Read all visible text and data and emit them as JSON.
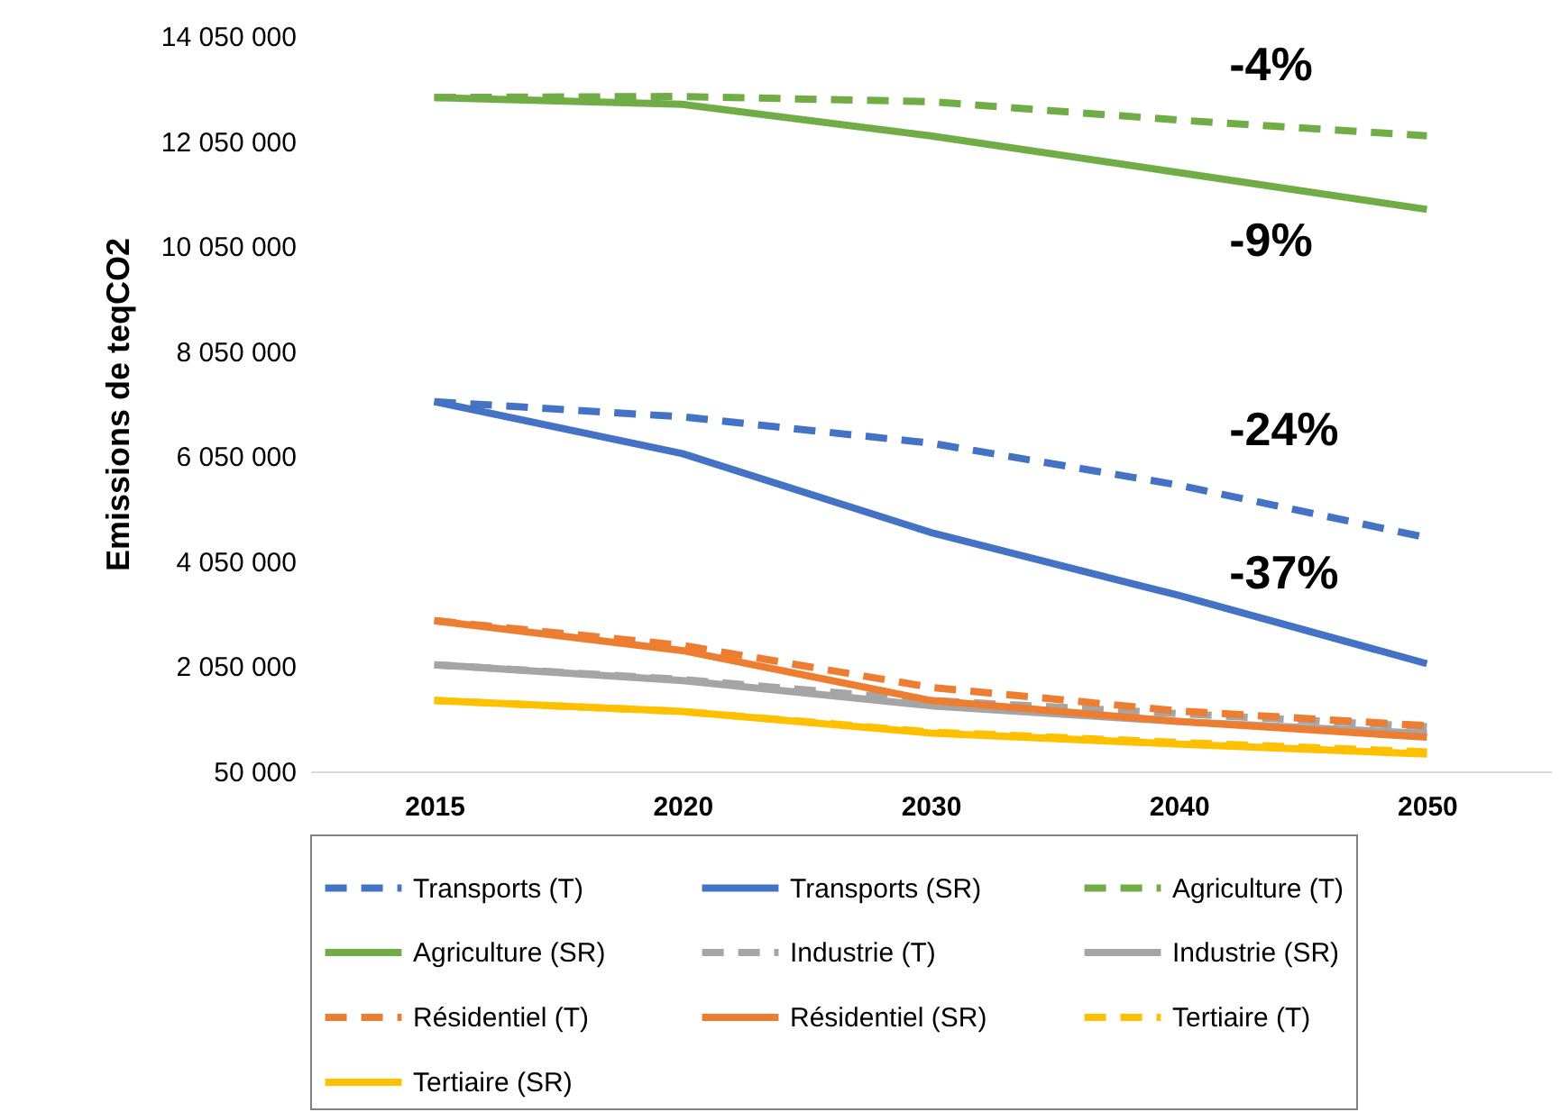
{
  "chart_data": {
    "type": "line",
    "ylabel": "Emissions de teqCO2",
    "categories": [
      "2015",
      "2020",
      "2030",
      "2040",
      "2050"
    ],
    "series": [
      {
        "name": "Transports (T)",
        "color": "#4472c4",
        "line_style": "dashed",
        "values": [
          7090000,
          6800000,
          6300000,
          5500000,
          4500000
        ]
      },
      {
        "name": "Transports (SR)",
        "color": "#4472c4",
        "line_style": "solid",
        "values": [
          7090000,
          6100000,
          4600000,
          3400000,
          2100000
        ]
      },
      {
        "name": "Agriculture (T)",
        "color": "#70ad47",
        "line_style": "dashed",
        "values": [
          12880000,
          12900000,
          12800000,
          12450000,
          12150000
        ]
      },
      {
        "name": "Agriculture (SR)",
        "color": "#70ad47",
        "line_style": "solid",
        "values": [
          12880000,
          12750000,
          12150000,
          11450000,
          10750000
        ]
      },
      {
        "name": "Industrie (T)",
        "color": "#a5a5a5",
        "line_style": "dashed",
        "values": [
          2080000,
          1800000,
          1400000,
          1150000,
          900000
        ]
      },
      {
        "name": "Industrie (SR)",
        "color": "#a5a5a5",
        "line_style": "solid",
        "values": [
          2080000,
          1780000,
          1300000,
          1000000,
          770000
        ]
      },
      {
        "name": "Résidentiel (T)",
        "color": "#ed7d31",
        "line_style": "dashed",
        "values": [
          2920000,
          2450000,
          1650000,
          1200000,
          920000
        ]
      },
      {
        "name": "Résidentiel (SR)",
        "color": "#ed7d31",
        "line_style": "solid",
        "values": [
          2920000,
          2350000,
          1400000,
          1000000,
          700000
        ]
      },
      {
        "name": "Tertiaire (T)",
        "color": "#ffc000",
        "line_style": "dashed",
        "values": [
          1400000,
          1190000,
          800000,
          600000,
          420000
        ]
      },
      {
        "name": "Tertiaire (SR)",
        "color": "#ffc000",
        "line_style": "solid",
        "values": [
          1400000,
          1190000,
          780000,
          570000,
          380000
        ]
      }
    ],
    "ylim": [
      50000,
      14050000
    ],
    "yticks": [
      {
        "value": 50000,
        "label": "50 000"
      },
      {
        "value": 2050000,
        "label": "2 050 000"
      },
      {
        "value": 4050000,
        "label": "4 050 000"
      },
      {
        "value": 6050000,
        "label": "6 050 000"
      },
      {
        "value": 8050000,
        "label": "8 050 000"
      },
      {
        "value": 10050000,
        "label": "10 050 000"
      },
      {
        "value": 12050000,
        "label": "12 050 000"
      },
      {
        "value": 14050000,
        "label": "14 050 000"
      }
    ],
    "annotations": [
      {
        "text": "-4%",
        "x": "2040",
        "y": 12450000
      },
      {
        "text": "-9%",
        "x": "2040",
        "y": 11450000
      },
      {
        "text": "-24%",
        "x": "2040",
        "y": 5500000
      },
      {
        "text": "-37%",
        "x": "2040",
        "y": 3400000
      }
    ],
    "grid": false,
    "legend": "bottom",
    "marker": "none"
  }
}
